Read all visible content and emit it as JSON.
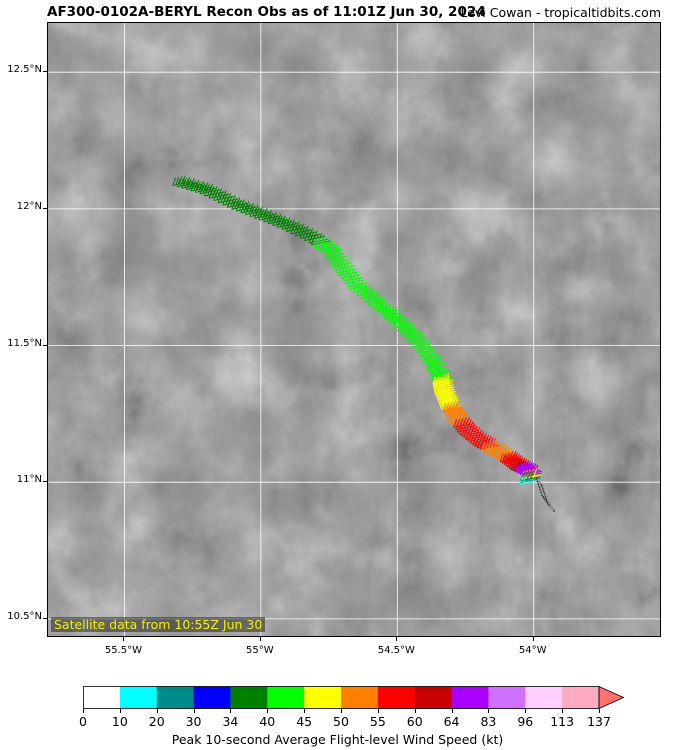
{
  "header": {
    "title": "AF300-0102A-BERYL Recon Obs as of 11:01Z Jun 30, 2024",
    "credit": "Levi Cowan - tropicaltidbits.com"
  },
  "map": {
    "lat_range": [
      10.43,
      12.68
    ],
    "lon_range": [
      -55.78,
      -53.53
    ],
    "lat_ticks": [
      {
        "value": 12.5,
        "label": "12.5°N"
      },
      {
        "value": 12.0,
        "label": "12°N"
      },
      {
        "value": 11.5,
        "label": "11.5°N"
      },
      {
        "value": 11.0,
        "label": "11°N"
      },
      {
        "value": 10.5,
        "label": "10.5°N"
      }
    ],
    "lon_ticks": [
      {
        "value": -55.5,
        "label": "55.5°W"
      },
      {
        "value": -55.0,
        "label": "55°W"
      },
      {
        "value": -54.5,
        "label": "54.5°W"
      },
      {
        "value": -54.0,
        "label": "54°W"
      }
    ],
    "gridlines": true,
    "satellite_label": "Satellite data from 10:55Z Jun 30",
    "flight_track": [
      {
        "lon": -55.25,
        "lat": 12.1,
        "kt": 37
      },
      {
        "lon": -55.15,
        "lat": 12.07,
        "kt": 37
      },
      {
        "lon": -55.05,
        "lat": 12.02,
        "kt": 37
      },
      {
        "lon": -54.95,
        "lat": 11.98,
        "kt": 38
      },
      {
        "lon": -54.85,
        "lat": 11.94,
        "kt": 38
      },
      {
        "lon": -54.75,
        "lat": 11.89,
        "kt": 39
      },
      {
        "lon": -54.7,
        "lat": 11.85,
        "kt": 42
      },
      {
        "lon": -54.65,
        "lat": 11.78,
        "kt": 43
      },
      {
        "lon": -54.6,
        "lat": 11.72,
        "kt": 43
      },
      {
        "lon": -54.52,
        "lat": 11.65,
        "kt": 43
      },
      {
        "lon": -54.45,
        "lat": 11.59,
        "kt": 43
      },
      {
        "lon": -54.38,
        "lat": 11.52,
        "kt": 42
      },
      {
        "lon": -54.33,
        "lat": 11.45,
        "kt": 43
      },
      {
        "lon": -54.3,
        "lat": 11.39,
        "kt": 44
      },
      {
        "lon": -54.29,
        "lat": 11.34,
        "kt": 47
      },
      {
        "lon": -54.27,
        "lat": 11.29,
        "kt": 49
      },
      {
        "lon": -54.24,
        "lat": 11.24,
        "kt": 53
      },
      {
        "lon": -54.2,
        "lat": 11.19,
        "kt": 57
      },
      {
        "lon": -54.15,
        "lat": 11.15,
        "kt": 58
      },
      {
        "lon": -54.1,
        "lat": 11.12,
        "kt": 53
      },
      {
        "lon": -54.05,
        "lat": 11.09,
        "kt": 55
      },
      {
        "lon": -54.01,
        "lat": 11.06,
        "kt": 61
      },
      {
        "lon": -53.97,
        "lat": 11.04,
        "kt": 70
      },
      {
        "lon": -53.98,
        "lat": 11.0,
        "kt": 8
      },
      {
        "lon": -53.96,
        "lat": 10.94,
        "kt": 6
      },
      {
        "lon": -53.93,
        "lat": 10.9,
        "kt": 5
      }
    ]
  },
  "colorbar": {
    "levels": [
      0,
      10,
      20,
      30,
      34,
      40,
      45,
      50,
      55,
      60,
      64,
      83,
      96,
      113,
      137
    ],
    "tick_labels": [
      "0",
      "10",
      "20",
      "30",
      "34",
      "40",
      "45",
      "50",
      "55",
      "60",
      "64",
      "83",
      "96",
      "113",
      "137"
    ],
    "colors": [
      "#ffffff",
      "#00ffff",
      "#008b8b",
      "#0000ff",
      "#008000",
      "#00ff00",
      "#ffff00",
      "#ff8000",
      "#ff0000",
      "#c80000",
      "#aa00ff",
      "#d070ff",
      "#ffd0ff",
      "#ffaac0",
      "#ff7070"
    ],
    "label": "Peak 10-second Average Flight-level Wind Speed (kt)"
  }
}
